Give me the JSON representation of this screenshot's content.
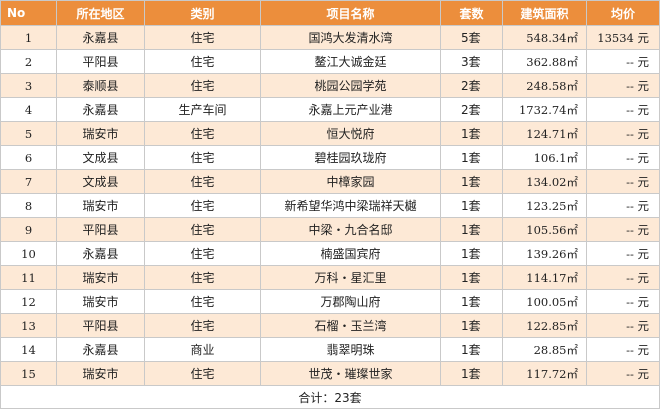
{
  "headers": [
    "No",
    "所在地区",
    "类别",
    "项目名称",
    "套数",
    "建筑面积",
    "均价"
  ],
  "rows": [
    {
      "no": "1",
      "region": "永嘉县",
      "category": "住宅",
      "project": "国鸿大发清水湾",
      "count": "5套",
      "area": "548.34㎡",
      "price": "13534 元"
    },
    {
      "no": "2",
      "region": "平阳县",
      "category": "住宅",
      "project": "鳌江大诚金廷",
      "count": "3套",
      "area": "362.88㎡",
      "price": "-- 元"
    },
    {
      "no": "3",
      "region": "泰顺县",
      "category": "住宅",
      "project": "桃园公园学苑",
      "count": "2套",
      "area": "248.58㎡",
      "price": "-- 元"
    },
    {
      "no": "4",
      "region": "永嘉县",
      "category": "生产车间",
      "project": "永嘉上元产业港",
      "count": "2套",
      "area": "1732.74㎡",
      "price": "-- 元"
    },
    {
      "no": "5",
      "region": "瑞安市",
      "category": "住宅",
      "project": "恒大悦府",
      "count": "1套",
      "area": "124.71㎡",
      "price": "-- 元"
    },
    {
      "no": "6",
      "region": "文成县",
      "category": "住宅",
      "project": "碧桂园玖珑府",
      "count": "1套",
      "area": "106.1㎡",
      "price": "-- 元"
    },
    {
      "no": "7",
      "region": "文成县",
      "category": "住宅",
      "project": "中樟家园",
      "count": "1套",
      "area": "134.02㎡",
      "price": "-- 元"
    },
    {
      "no": "8",
      "region": "瑞安市",
      "category": "住宅",
      "project": "新希望华鸿中梁瑞祥天樾",
      "count": "1套",
      "area": "123.25㎡",
      "price": "-- 元"
    },
    {
      "no": "9",
      "region": "平阳县",
      "category": "住宅",
      "project": "中梁・九合名邸",
      "count": "1套",
      "area": "105.56㎡",
      "price": "-- 元"
    },
    {
      "no": "10",
      "region": "永嘉县",
      "category": "住宅",
      "project": "楠盛国宾府",
      "count": "1套",
      "area": "139.26㎡",
      "price": "-- 元"
    },
    {
      "no": "11",
      "region": "瑞安市",
      "category": "住宅",
      "project": "万科・星汇里",
      "count": "1套",
      "area": "114.17㎡",
      "price": "-- 元"
    },
    {
      "no": "12",
      "region": "瑞安市",
      "category": "住宅",
      "project": "万郡陶山府",
      "count": "1套",
      "area": "100.05㎡",
      "price": "-- 元"
    },
    {
      "no": "13",
      "region": "平阳县",
      "category": "住宅",
      "project": "石榴・玉兰湾",
      "count": "1套",
      "area": "122.85㎡",
      "price": "-- 元"
    },
    {
      "no": "14",
      "region": "永嘉县",
      "category": "商业",
      "project": "翡翠明珠",
      "count": "1套",
      "area": "28.85㎡",
      "price": "-- 元"
    },
    {
      "no": "15",
      "region": "瑞安市",
      "category": "住宅",
      "project": "世茂・璀璨世家",
      "count": "1套",
      "area": "117.72㎡",
      "price": "-- 元"
    }
  ],
  "footer": {
    "total": "合计：23套"
  },
  "colors": {
    "header_bg": "#ec8e3c",
    "stripe_bg": "#fde9d6",
    "border": "#c9c9c9"
  }
}
